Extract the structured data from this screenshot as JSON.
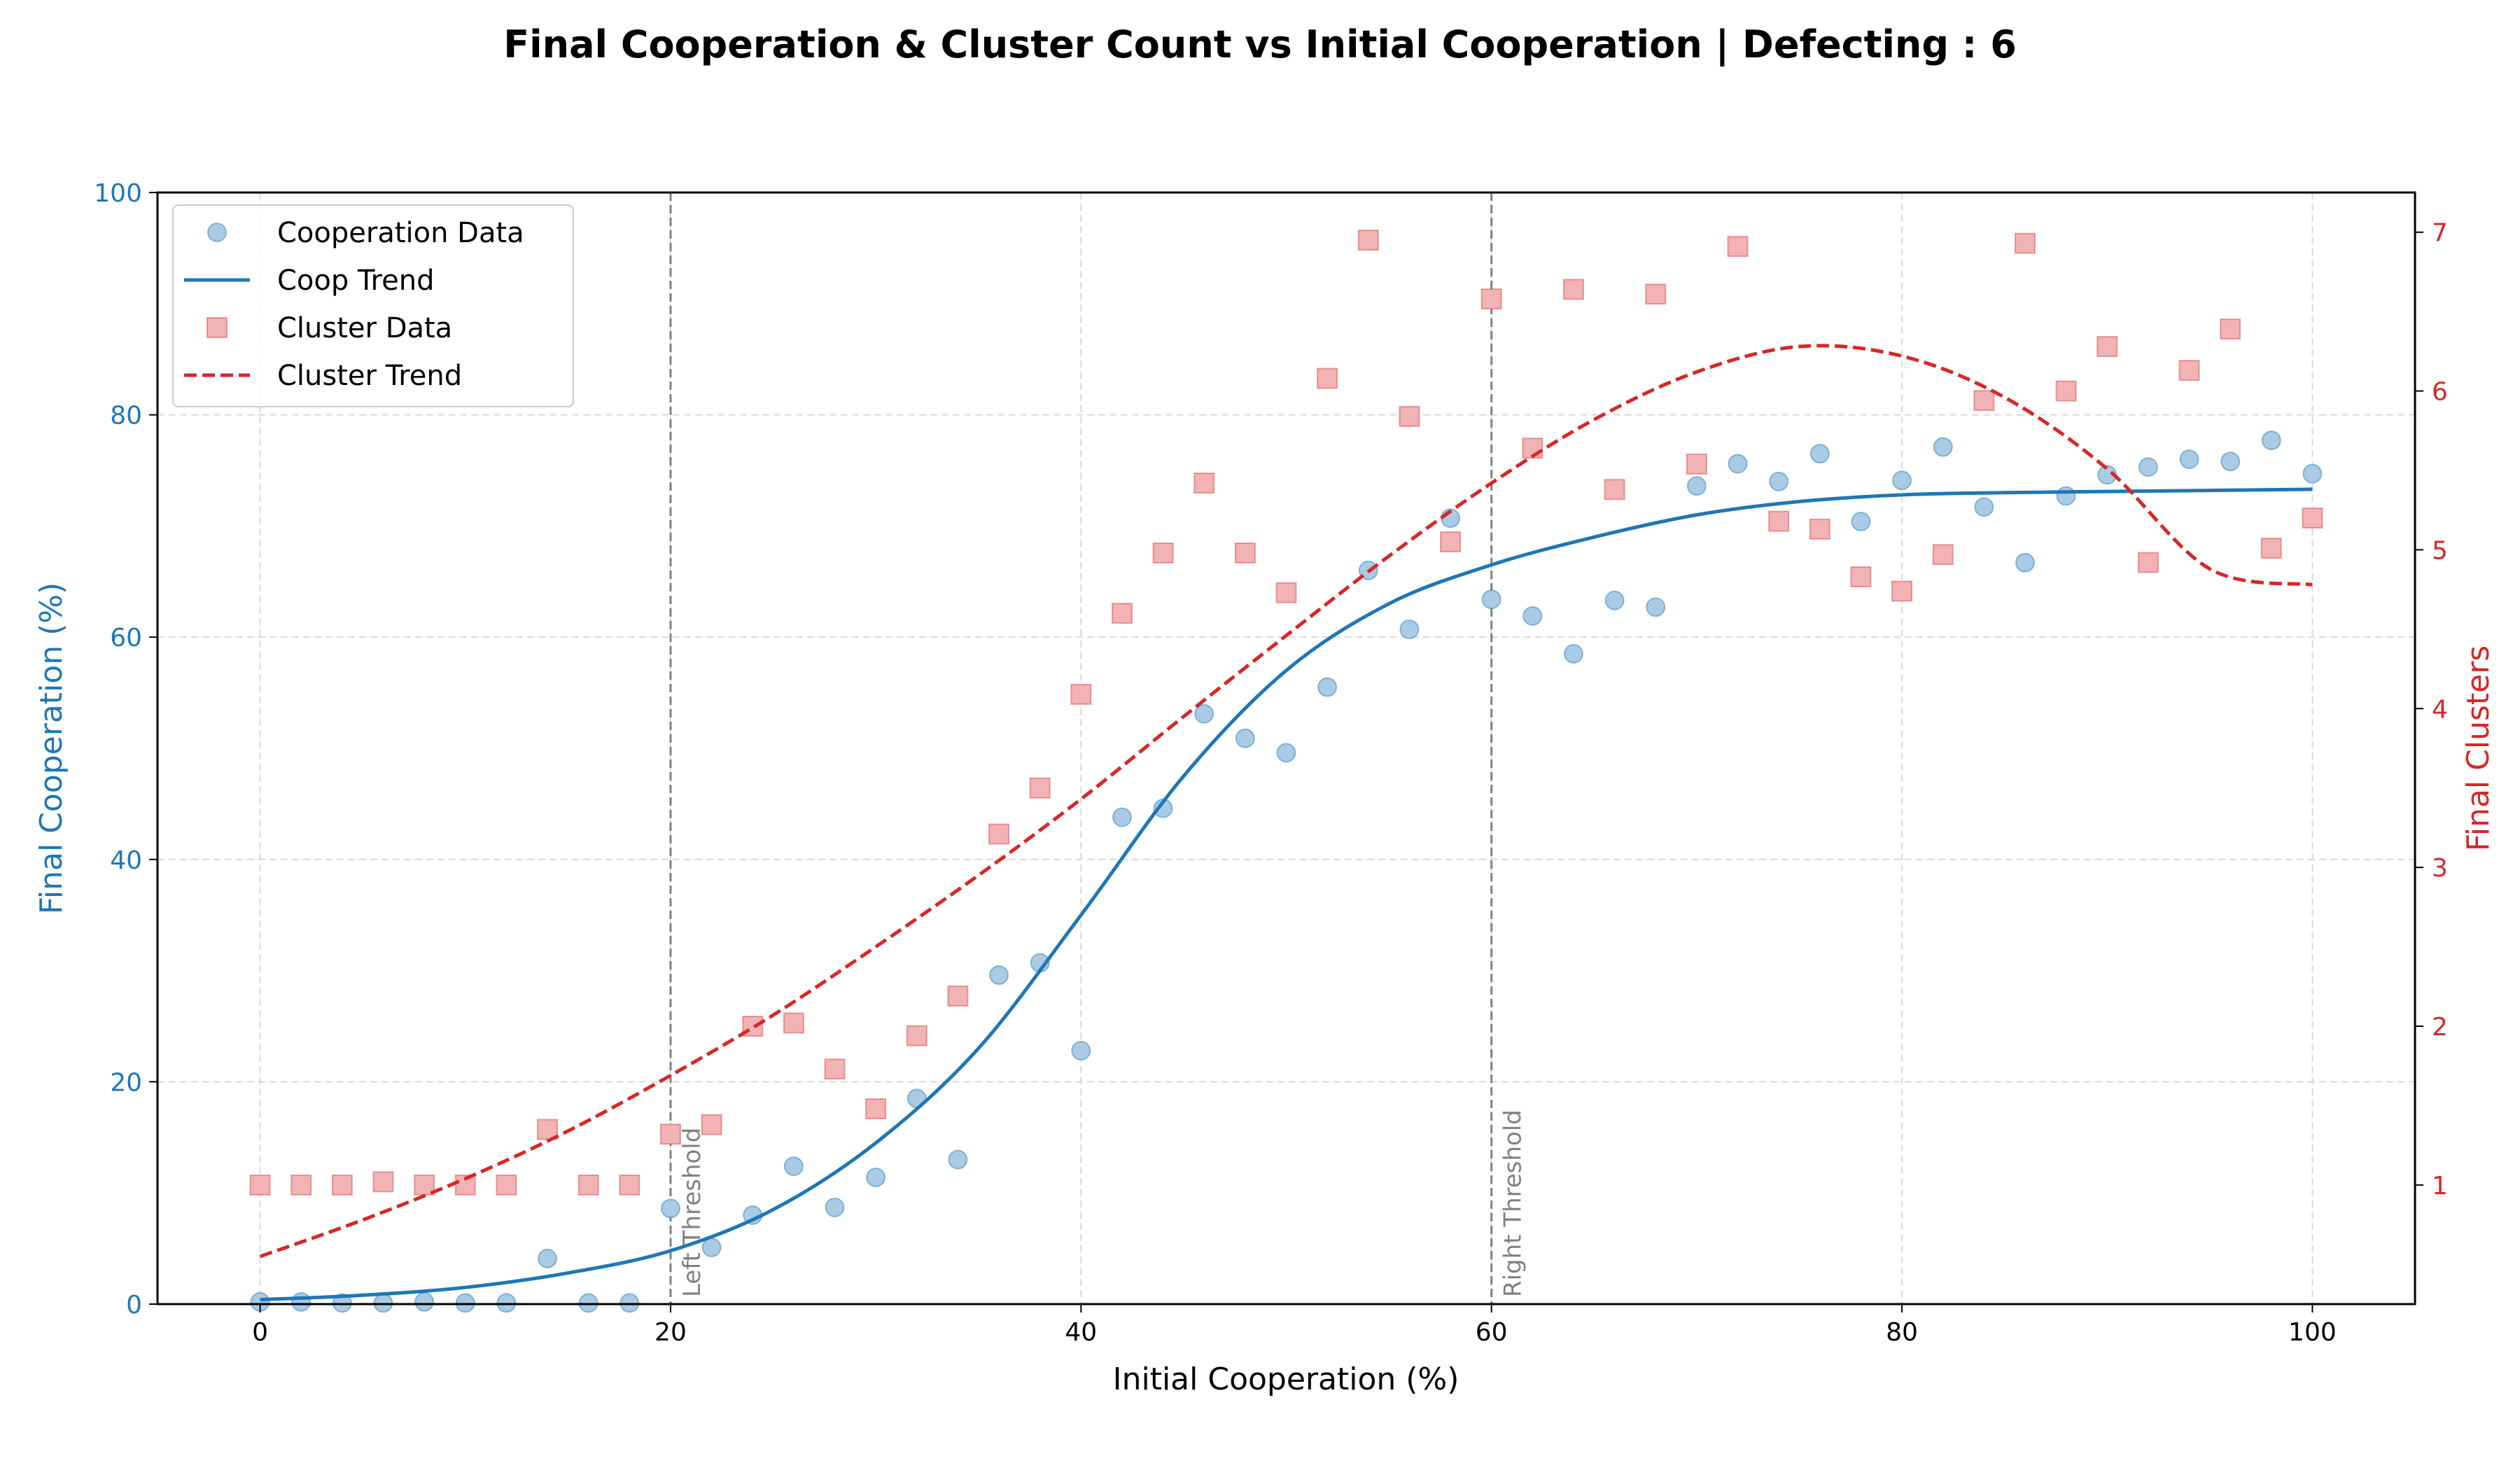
{
  "title": "Final Cooperation & Cluster Count vs Initial Cooperation | Defecting : 6",
  "colors": {
    "coop": "#1f77b4",
    "coop_marker_fill": "#a9cbe6",
    "cluster": "#d62728",
    "cluster_marker_fill": "#f1b3b4",
    "threshold": "#808080",
    "grid": "#d9d9d9"
  },
  "chart_data": {
    "type": "scatter",
    "title": "Final Cooperation & Cluster Count vs Initial Cooperation | Defecting : 6",
    "xlabel": "Initial Cooperation (%)",
    "ylabel_left": "Final Cooperation (%)",
    "ylabel_right": "Final Clusters",
    "xlim": [
      -5,
      105
    ],
    "ylim_left": [
      0,
      100
    ],
    "ylim_right": [
      0.25,
      7.25
    ],
    "xticks": [
      0,
      20,
      40,
      60,
      80,
      100
    ],
    "yticks_left": [
      0,
      20,
      40,
      60,
      80,
      100
    ],
    "yticks_right": [
      1,
      2,
      3,
      4,
      5,
      6,
      7
    ],
    "grid": true,
    "legend_position": "upper-left",
    "legend": [
      "Cooperation Data",
      "Coop Trend",
      "Cluster Data",
      "Cluster Trend"
    ],
    "thresholds": [
      {
        "x": 20,
        "label": "Left Threshold"
      },
      {
        "x": 60,
        "label": "Right Threshold"
      }
    ],
    "x": [
      0,
      2,
      4,
      6,
      8,
      10,
      12,
      14,
      16,
      18,
      20,
      22,
      24,
      26,
      28,
      30,
      32,
      34,
      36,
      38,
      40,
      42,
      44,
      46,
      48,
      50,
      52,
      54,
      56,
      58,
      60,
      62,
      64,
      66,
      68,
      70,
      72,
      74,
      76,
      78,
      80,
      82,
      84,
      86,
      88,
      90,
      92,
      94,
      96,
      98,
      100
    ],
    "series": [
      {
        "name": "Cooperation Data",
        "axis": "left",
        "style": "circle",
        "values": [
          0.2,
          0.2,
          0.1,
          0.1,
          0.2,
          0.1,
          0.1,
          4.1,
          0.1,
          0.1,
          8.6,
          5.1,
          8.0,
          12.4,
          8.7,
          11.4,
          18.5,
          13.0,
          29.6,
          30.7,
          22.8,
          43.8,
          44.6,
          53.1,
          50.9,
          49.6,
          55.5,
          66.0,
          60.7,
          70.7,
          63.4,
          61.9,
          58.5,
          63.3,
          62.7,
          73.6,
          75.6,
          74.0,
          76.5,
          70.4,
          74.1,
          77.1,
          71.7,
          66.7,
          72.7,
          74.6,
          75.3,
          76.0,
          75.8,
          77.7,
          74.7
        ]
      },
      {
        "name": "Cluster Data",
        "axis": "right",
        "style": "square",
        "values": [
          1.0,
          1.0,
          1.0,
          1.02,
          1.0,
          1.0,
          1.0,
          1.35,
          1.0,
          1.0,
          1.32,
          1.38,
          2.0,
          2.02,
          1.73,
          1.48,
          1.94,
          2.19,
          3.21,
          3.5,
          4.09,
          4.6,
          4.98,
          5.42,
          4.98,
          4.73,
          6.08,
          6.95,
          5.84,
          5.05,
          6.58,
          5.64,
          6.64,
          5.38,
          6.61,
          5.54,
          6.91,
          5.18,
          5.13,
          4.83,
          4.74,
          4.97,
          5.94,
          6.93,
          6.0,
          6.28,
          4.92,
          6.13,
          6.39,
          5.01,
          5.2
        ]
      }
    ],
    "trends": [
      {
        "name": "Coop Trend",
        "axis": "left",
        "style": "solid",
        "x": [
          0,
          5,
          10,
          15,
          20,
          25,
          30,
          35,
          40,
          45,
          50,
          55,
          60,
          65,
          70,
          75,
          80,
          85,
          90,
          95,
          100
        ],
        "values": [
          0.4,
          0.8,
          1.5,
          2.8,
          4.8,
          8.5,
          14.5,
          23,
          35,
          47.5,
          57,
          63,
          66.5,
          69,
          71,
          72.2,
          72.8,
          73.0,
          73.1,
          73.2,
          73.3
        ]
      },
      {
        "name": "Cluster Trend",
        "axis": "right",
        "style": "dashed",
        "x": [
          0,
          5,
          10,
          15,
          20,
          25,
          30,
          35,
          40,
          45,
          50,
          55,
          60,
          65,
          70,
          75,
          80,
          85,
          90,
          95,
          100
        ],
        "values": [
          0.55,
          0.78,
          1.04,
          1.34,
          1.69,
          2.07,
          2.5,
          2.95,
          3.43,
          3.95,
          4.46,
          4.96,
          5.42,
          5.82,
          6.12,
          6.28,
          6.22,
          5.96,
          5.51,
          4.88,
          4.78
        ]
      }
    ]
  }
}
